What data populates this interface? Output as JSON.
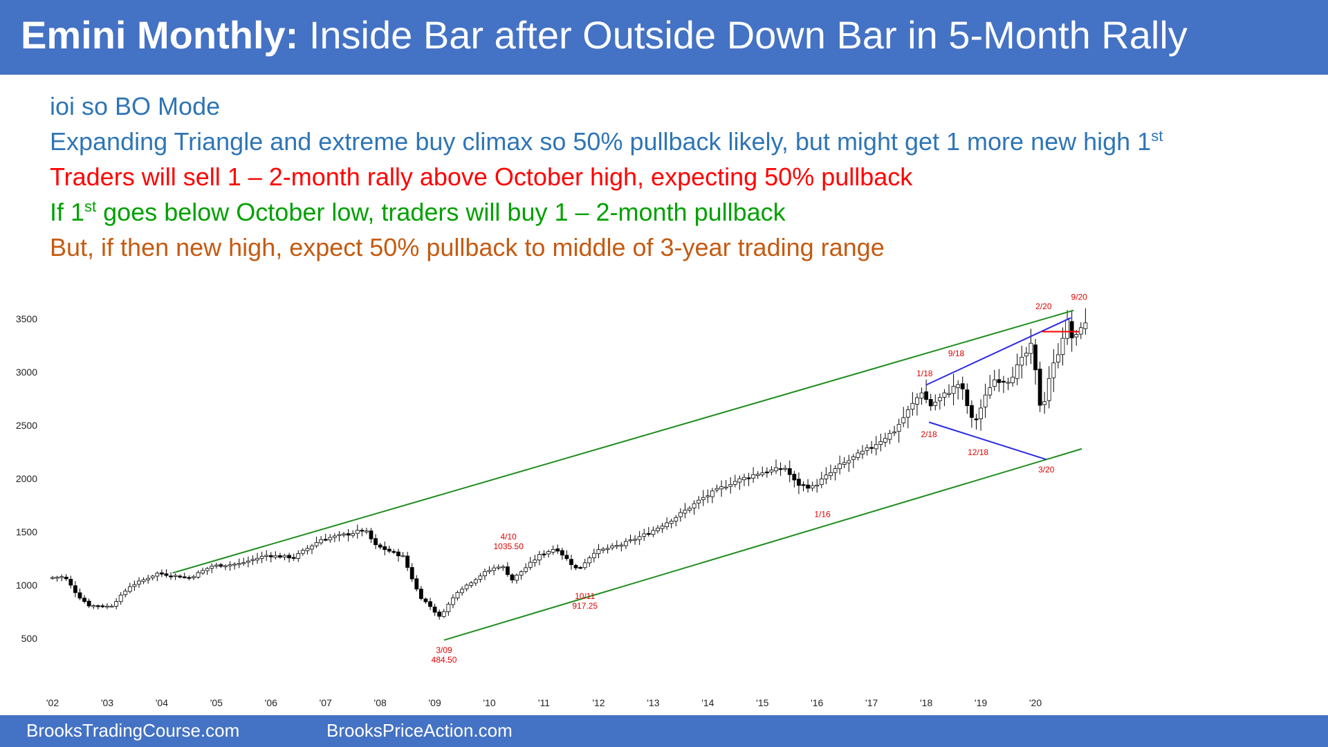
{
  "title": {
    "bold": "Emini Monthly:",
    "rest": " Inside Bar after Outside Down Bar in 5-Month Rally"
  },
  "notes": [
    {
      "text": "ioi so BO Mode",
      "sup": "",
      "suffix": "",
      "color": "#2e75b6"
    },
    {
      "text": "Expanding Triangle and extreme buy climax so 50% pullback likely, but might get 1 more new high 1",
      "sup": "st",
      "suffix": "",
      "color": "#2e75b6"
    },
    {
      "text": "Traders will sell 1 – 2-month rally above October high, expecting 50% pullback",
      "sup": "",
      "suffix": "",
      "color": "#ff0000"
    },
    {
      "text": "If 1",
      "sup": "st",
      "suffix": " goes below October low, traders will buy 1 – 2-month pullback",
      "color": "#00a000"
    },
    {
      "text": "But, if then new high, expect 50% pullback to middle of 3-year trading range",
      "sup": "",
      "suffix": "",
      "color": "#c55a11"
    }
  ],
  "footer": {
    "left": "BrooksTradingCourse.com",
    "right": "BrooksPriceAction.com"
  },
  "colors": {
    "header_bg": "#4472c4",
    "channel_line": "#1e8c1e",
    "triangle_line": "#2a2ae6",
    "breakout_line": "#ff0000",
    "annotation_text": "#e00000",
    "bull_candle": "#ffffff",
    "bear_candle": "#000000"
  },
  "chart_data": {
    "type": "candlestick",
    "title": "",
    "xlabel": "",
    "ylabel": "",
    "x_range": [
      2002.0,
      2020.9
    ],
    "ylim": [
      150,
      3750
    ],
    "y_ticks": [
      500,
      1000,
      1500,
      2000,
      2500,
      3000,
      3500
    ],
    "x_ticks": [
      {
        "label": "'02",
        "x": 2002
      },
      {
        "label": "'03",
        "x": 2003
      },
      {
        "label": "'04",
        "x": 2004
      },
      {
        "label": "'05",
        "x": 2005
      },
      {
        "label": "'06",
        "x": 2006
      },
      {
        "label": "'07",
        "x": 2007
      },
      {
        "label": "'08",
        "x": 2008
      },
      {
        "label": "'09",
        "x": 2009
      },
      {
        "label": "'10",
        "x": 2010
      },
      {
        "label": "'11",
        "x": 2011
      },
      {
        "label": "'12",
        "x": 2012
      },
      {
        "label": "'13",
        "x": 2013
      },
      {
        "label": "'14",
        "x": 2014
      },
      {
        "label": "'15",
        "x": 2015
      },
      {
        "label": "'16",
        "x": 2016
      },
      {
        "label": "'17",
        "x": 2017
      },
      {
        "label": "'18",
        "x": 2018
      },
      {
        "label": "'19",
        "x": 2019
      },
      {
        "label": "'20",
        "x": 2020
      }
    ],
    "price_path": [
      [
        2002.0,
        1070
      ],
      [
        2002.3,
        1080
      ],
      [
        2002.55,
        900
      ],
      [
        2002.75,
        810
      ],
      [
        2003.15,
        800
      ],
      [
        2003.5,
        990
      ],
      [
        2004.0,
        1110
      ],
      [
        2004.6,
        1070
      ],
      [
        2005.0,
        1180
      ],
      [
        2005.5,
        1200
      ],
      [
        2006.0,
        1280
      ],
      [
        2006.5,
        1260
      ],
      [
        2007.0,
        1430
      ],
      [
        2007.5,
        1480
      ],
      [
        2007.8,
        1520
      ],
      [
        2008.0,
        1370
      ],
      [
        2008.5,
        1270
      ],
      [
        2008.8,
        900
      ],
      [
        2009.0,
        800
      ],
      [
        2009.17,
        700
      ],
      [
        2009.5,
        940
      ],
      [
        2010.0,
        1120
      ],
      [
        2010.3,
        1190
      ],
      [
        2010.5,
        1050
      ],
      [
        2011.0,
        1280
      ],
      [
        2011.3,
        1350
      ],
      [
        2011.7,
        1140
      ],
      [
        2012.0,
        1310
      ],
      [
        2012.5,
        1380
      ],
      [
        2013.0,
        1490
      ],
      [
        2013.5,
        1640
      ],
      [
        2014.0,
        1820
      ],
      [
        2014.5,
        1960
      ],
      [
        2015.0,
        2050
      ],
      [
        2015.5,
        2100
      ],
      [
        2015.7,
        1950
      ],
      [
        2016.0,
        1920
      ],
      [
        2016.5,
        2120
      ],
      [
        2017.0,
        2270
      ],
      [
        2017.5,
        2450
      ],
      [
        2018.0,
        2820
      ],
      [
        2018.15,
        2680
      ],
      [
        2018.7,
        2900
      ],
      [
        2018.95,
        2500
      ],
      [
        2019.3,
        2930
      ],
      [
        2019.6,
        2930
      ],
      [
        2020.0,
        3240
      ],
      [
        2020.1,
        2950
      ],
      [
        2020.2,
        2580
      ],
      [
        2020.3,
        2900
      ],
      [
        2020.55,
        3260
      ],
      [
        2020.65,
        3500
      ],
      [
        2020.72,
        3360
      ],
      [
        2020.8,
        3270
      ],
      [
        2020.9,
        3440
      ]
    ],
    "lines": [
      {
        "name": "channel-top",
        "from": [
          2004.2,
          1115
        ],
        "to": [
          2020.7,
          3580
        ],
        "color": "#1e8c1e"
      },
      {
        "name": "channel-bottom",
        "from": [
          2009.17,
          484
        ],
        "to": [
          2020.85,
          2280
        ],
        "color": "#1e8c1e"
      },
      {
        "name": "triangle-top",
        "from": [
          2018.0,
          2880
        ],
        "to": [
          2020.65,
          3510
        ],
        "color": "#2a2ae6"
      },
      {
        "name": "triangle-bottom",
        "from": [
          2018.05,
          2530
        ],
        "to": [
          2020.2,
          2180
        ],
        "color": "#2a2ae6"
      },
      {
        "name": "feb-high",
        "from": [
          2020.12,
          3380
        ],
        "to": [
          2020.8,
          3380
        ],
        "color": "#ff0000"
      }
    ],
    "annotations": [
      {
        "lines": [
          "2/20"
        ],
        "x": 2020.15,
        "y": 3590
      },
      {
        "lines": [
          "9/20"
        ],
        "x": 2020.8,
        "y": 3680
      },
      {
        "lines": [
          "9/18"
        ],
        "x": 2018.55,
        "y": 3150
      },
      {
        "lines": [
          "1/18"
        ],
        "x": 2017.97,
        "y": 2960
      },
      {
        "lines": [
          "2/18"
        ],
        "x": 2018.05,
        "y": 2390
      },
      {
        "lines": [
          "12/18"
        ],
        "x": 2018.95,
        "y": 2220
      },
      {
        "lines": [
          "3/20"
        ],
        "x": 2020.2,
        "y": 2060
      },
      {
        "lines": [
          "1/16"
        ],
        "x": 2016.1,
        "y": 1640
      },
      {
        "lines": [
          "4/10",
          "1035.50"
        ],
        "x": 2010.35,
        "y": 1430
      },
      {
        "lines": [
          "10/11",
          "917.25"
        ],
        "x": 2011.75,
        "y": 870
      },
      {
        "lines": [
          "3/09",
          "484.50"
        ],
        "x": 2009.17,
        "y": 365
      }
    ]
  }
}
